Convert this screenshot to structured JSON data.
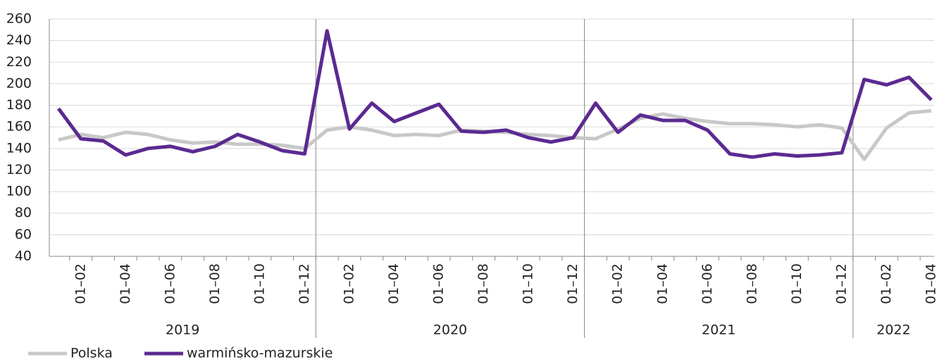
{
  "chart_data": {
    "type": "line",
    "categories": [
      null,
      "01–02",
      null,
      "01–04",
      null,
      "01–06",
      null,
      "01–08",
      null,
      "01–10",
      null,
      "01–12",
      null,
      "01–02",
      null,
      "01–04",
      null,
      "01–06",
      null,
      "01–08",
      null,
      "01–10",
      null,
      "01–12",
      null,
      "01–02",
      null,
      "01–04",
      null,
      "01–06",
      null,
      "01–08",
      null,
      "01–10",
      null,
      "01–12",
      null,
      "01–02",
      null,
      "01–04"
    ],
    "year_labels": [
      "2019",
      "2020",
      "2021",
      "2022"
    ],
    "series": [
      {
        "name": "Polska",
        "color": "#c8c8c8",
        "values": [
          148,
          153,
          150,
          155,
          153,
          148,
          145,
          146,
          144,
          144,
          143,
          140,
          157,
          160,
          157,
          152,
          153,
          152,
          157,
          156,
          155,
          153,
          152,
          150,
          149,
          158,
          168,
          172,
          168,
          165,
          163,
          163,
          162,
          160,
          162,
          159,
          130,
          159,
          173,
          175
        ]
      },
      {
        "name": "warmińsko-mazurskie",
        "color": "#5b2a91",
        "values": [
          177,
          149,
          147,
          134,
          140,
          142,
          137,
          142,
          153,
          146,
          138,
          135,
          249,
          158,
          182,
          165,
          173,
          181,
          156,
          155,
          157,
          150,
          146,
          150,
          182,
          155,
          171,
          166,
          166,
          157,
          135,
          132,
          135,
          133,
          134,
          136,
          204,
          199,
          206,
          185
        ]
      }
    ],
    "ylim": [
      40,
      260
    ],
    "yticks": [
      40,
      60,
      80,
      100,
      120,
      140,
      160,
      180,
      200,
      220,
      240,
      260
    ],
    "grid": true,
    "legend": "bottom-left"
  }
}
